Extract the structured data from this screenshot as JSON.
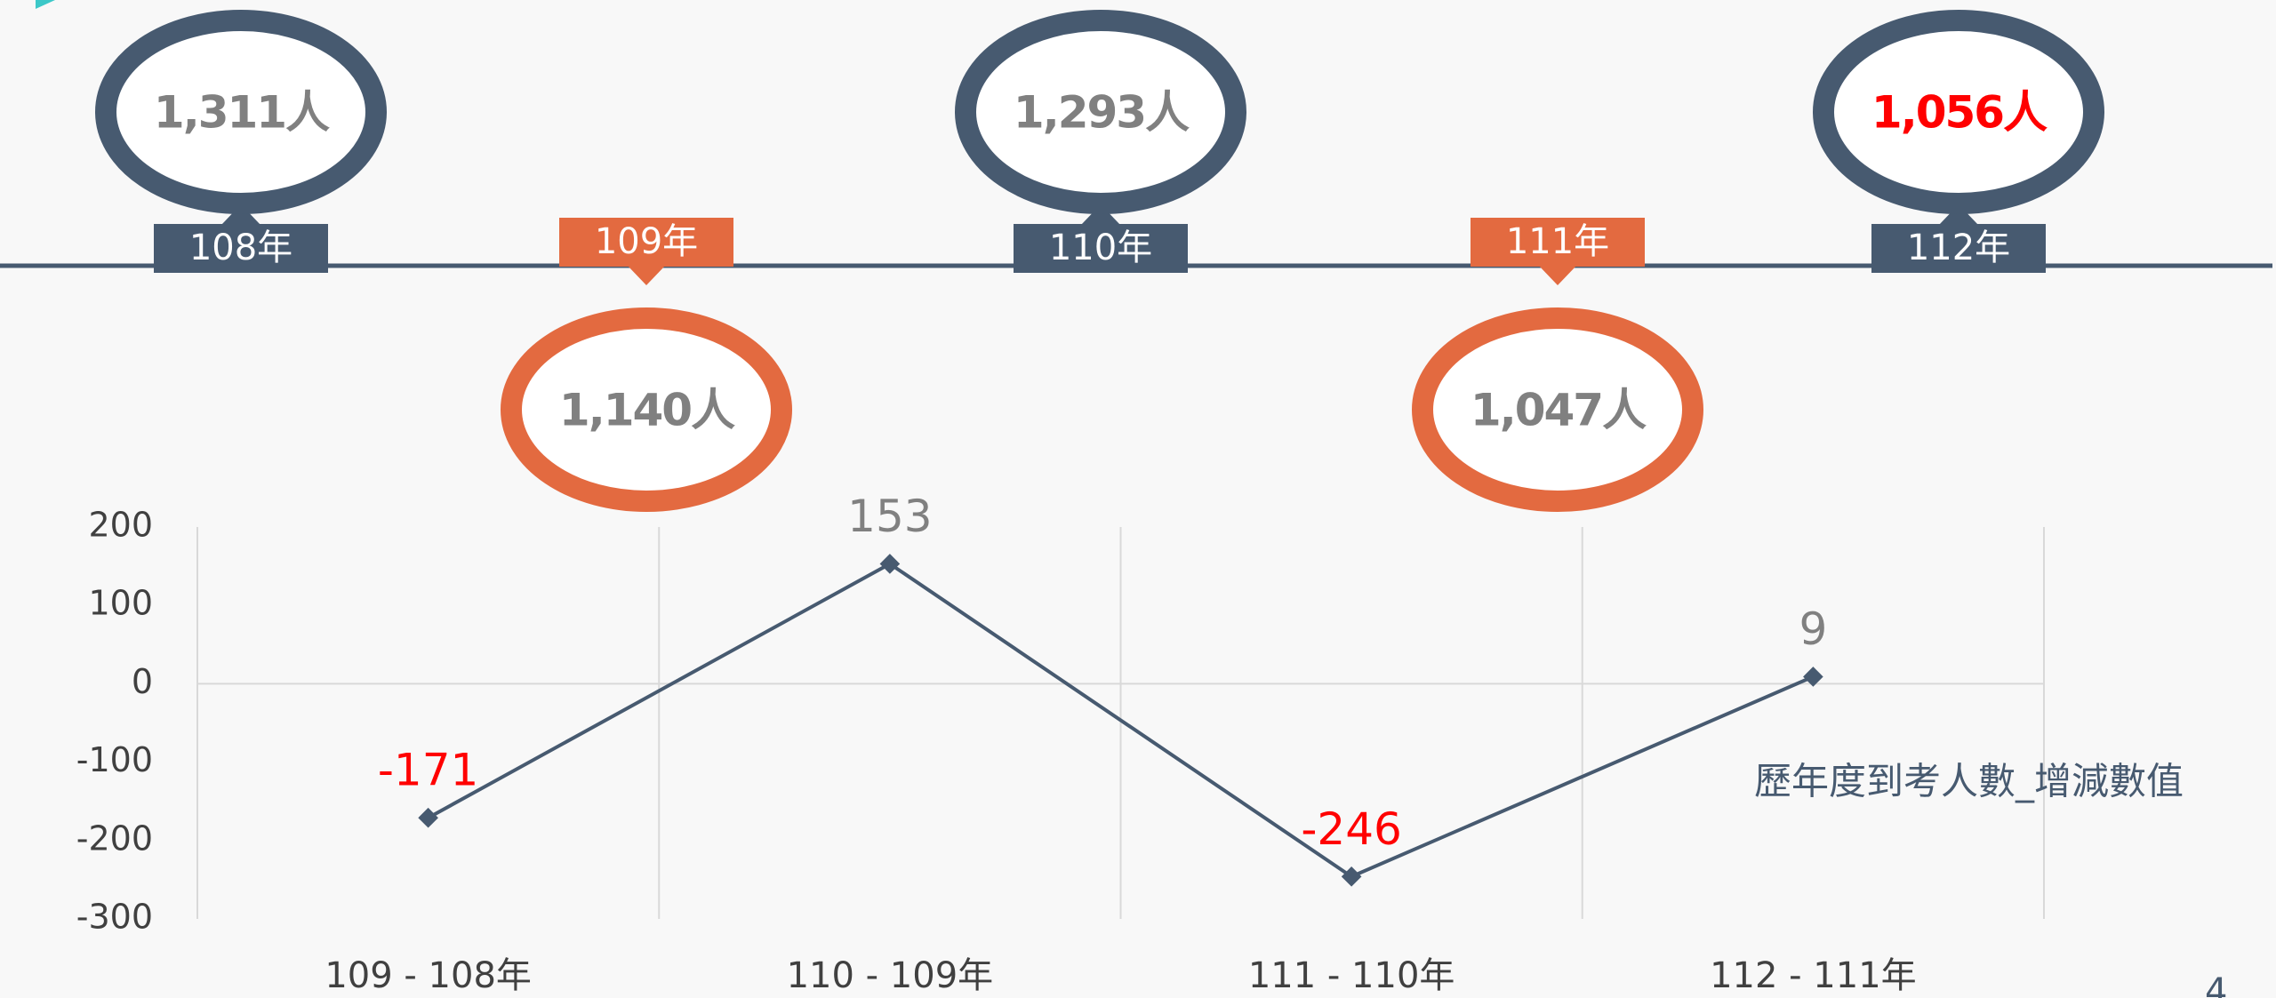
{
  "timeline": {
    "items": [
      {
        "year": "108年",
        "count": "1,311人",
        "color": "#475a70",
        "text_color": "#808080"
      },
      {
        "year": "109年",
        "count": "1,140人",
        "color": "#e36a40",
        "text_color": "#808080"
      },
      {
        "year": "110年",
        "count": "1,293人",
        "color": "#475a70",
        "text_color": "#808080"
      },
      {
        "year": "111年",
        "count": "1,047人",
        "color": "#e36a40",
        "text_color": "#808080"
      },
      {
        "year": "112年",
        "count": "1,056人",
        "color": "#475a70",
        "text_color": "#ff0000"
      }
    ]
  },
  "chart_data": {
    "type": "line",
    "categories": [
      "109 - 108年",
      "110 - 109年",
      "111 - 110年",
      "112 - 111年"
    ],
    "series": [
      {
        "name": "歷年度到考人數_增減數值",
        "color": "#475a70",
        "values": [
          -171,
          153,
          -246,
          9
        ]
      }
    ],
    "ylim": [
      -300,
      200
    ],
    "yticks": [
      -300,
      -200,
      -100,
      0,
      100,
      200
    ],
    "grid": true,
    "label_color": "#808080",
    "negative_label_color": "#ff0000"
  },
  "page_number": "4"
}
